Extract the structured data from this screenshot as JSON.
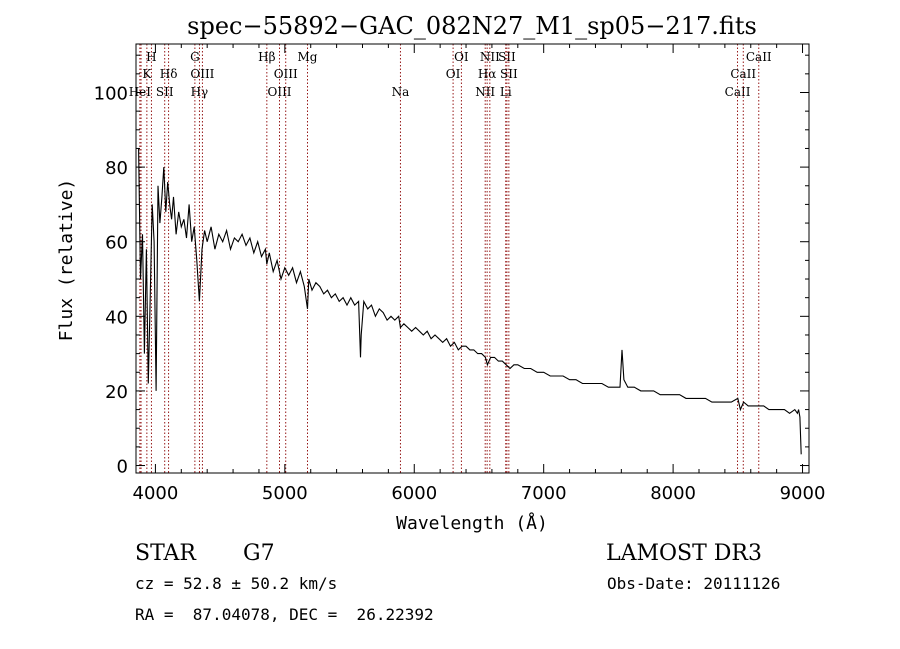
{
  "chart_data": {
    "type": "line",
    "title": "spec−55892−GAC_082N27_M1_sp05−217.fits",
    "xlabel": "Wavelength (Å)",
    "ylabel": "Flux (relative)",
    "xlim": [
      3850,
      9050
    ],
    "ylim": [
      -2,
      113
    ],
    "xticks": [
      4000,
      5000,
      6000,
      7000,
      8000,
      9000
    ],
    "yticks": [
      0,
      20,
      40,
      60,
      80,
      100
    ],
    "xtick_labels": [
      "4000",
      "5000",
      "6000",
      "7000",
      "8000",
      "9000"
    ],
    "ytick_labels": [
      "0",
      "20",
      "40",
      "60",
      "80",
      "100"
    ],
    "grid": false,
    "line_color": "#000000",
    "marker_color": "#8b0000",
    "series": [
      {
        "name": "flux",
        "x": [
          3870,
          3885,
          3900,
          3915,
          3930,
          3945,
          3960,
          3975,
          3990,
          4005,
          4020,
          4035,
          4050,
          4065,
          4080,
          4095,
          4110,
          4125,
          4140,
          4160,
          4180,
          4200,
          4220,
          4240,
          4260,
          4280,
          4300,
          4320,
          4340,
          4360,
          4380,
          4400,
          4430,
          4460,
          4490,
          4520,
          4550,
          4580,
          4610,
          4640,
          4670,
          4700,
          4730,
          4760,
          4790,
          4820,
          4850,
          4861,
          4880,
          4910,
          4940,
          4970,
          5000,
          5030,
          5060,
          5090,
          5120,
          5150,
          5175,
          5185,
          5210,
          5240,
          5270,
          5300,
          5330,
          5360,
          5390,
          5420,
          5450,
          5480,
          5510,
          5540,
          5570,
          5585,
          5590,
          5610,
          5640,
          5670,
          5700,
          5730,
          5760,
          5790,
          5820,
          5850,
          5880,
          5893,
          5920,
          5950,
          5980,
          6010,
          6040,
          6070,
          6100,
          6130,
          6160,
          6190,
          6220,
          6250,
          6280,
          6310,
          6340,
          6370,
          6400,
          6430,
          6460,
          6490,
          6520,
          6550,
          6565,
          6590,
          6620,
          6650,
          6680,
          6710,
          6740,
          6770,
          6800,
          6850,
          6900,
          6950,
          7000,
          7050,
          7100,
          7150,
          7200,
          7250,
          7300,
          7350,
          7400,
          7450,
          7500,
          7550,
          7590,
          7605,
          7620,
          7650,
          7700,
          7750,
          7800,
          7850,
          7900,
          7950,
          8000,
          8050,
          8100,
          8150,
          8200,
          8250,
          8300,
          8350,
          8400,
          8450,
          8500,
          8520,
          8545,
          8580,
          8620,
          8660,
          8700,
          8740,
          8780,
          8820,
          8860,
          8900,
          8940,
          8960,
          8970,
          8980,
          8990
        ],
        "y": [
          85,
          50,
          62,
          30,
          58,
          22,
          45,
          70,
          60,
          20,
          75,
          65,
          72,
          80,
          68,
          76,
          70,
          66,
          72,
          62,
          68,
          64,
          66,
          61,
          70,
          60,
          64,
          55,
          44,
          58,
          63,
          60,
          64,
          58,
          62,
          60,
          63,
          58,
          61,
          60,
          62,
          59,
          61,
          57,
          60,
          56,
          58,
          54,
          57,
          52,
          55,
          50,
          53,
          51,
          53,
          49,
          52,
          48,
          42,
          50,
          47,
          49,
          48,
          46,
          47,
          45,
          46,
          44,
          45,
          43,
          45,
          43,
          44,
          29,
          35,
          44,
          42,
          43,
          40,
          42,
          41,
          39,
          40,
          39,
          40,
          37,
          38,
          37,
          36,
          37,
          36,
          35,
          36,
          34,
          35,
          34,
          33,
          34,
          32,
          33,
          31,
          32,
          32,
          31,
          31,
          30,
          30,
          29,
          27,
          29,
          29,
          28,
          28,
          27,
          26,
          27,
          27,
          26,
          26,
          25,
          25,
          24,
          24,
          24,
          23,
          23,
          22,
          22,
          22,
          22,
          21,
          21,
          21,
          31,
          23,
          21,
          21,
          20,
          20,
          20,
          19,
          19,
          19,
          19,
          18,
          18,
          18,
          18,
          17,
          17,
          17,
          17,
          18,
          15,
          17,
          16,
          16,
          16,
          16,
          15,
          15,
          15,
          15,
          14,
          15,
          14,
          15,
          13,
          3
        ]
      }
    ],
    "line_markers": [
      {
        "wl": 3880,
        "label": "HeI",
        "row": 3
      },
      {
        "wl": 3889,
        "label": "",
        "row": 0
      },
      {
        "wl": 3934,
        "label": "K",
        "row": 2
      },
      {
        "wl": 3969,
        "label": "H",
        "row": 1
      },
      {
        "wl": 4072,
        "label": "SII",
        "row": 3
      },
      {
        "wl": 4102,
        "label": "Hδ",
        "row": 2
      },
      {
        "wl": 4305,
        "label": "G",
        "row": 1
      },
      {
        "wl": 4340,
        "label": "Hγ",
        "row": 3
      },
      {
        "wl": 4363,
        "label": "OIII",
        "row": 2
      },
      {
        "wl": 4861,
        "label": "Hβ",
        "row": 1
      },
      {
        "wl": 4959,
        "label": "OIII",
        "row": 3
      },
      {
        "wl": 5007,
        "label": "OIII",
        "row": 2
      },
      {
        "wl": 5175,
        "label": "Mg",
        "row": 1
      },
      {
        "wl": 5893,
        "label": "Na",
        "row": 3
      },
      {
        "wl": 6300,
        "label": "OI",
        "row": 2
      },
      {
        "wl": 6364,
        "label": "OI",
        "row": 1
      },
      {
        "wl": 6548,
        "label": "NII",
        "row": 3
      },
      {
        "wl": 6563,
        "label": "Hα",
        "row": 2
      },
      {
        "wl": 6584,
        "label": "NII",
        "row": 1
      },
      {
        "wl": 6707,
        "label": "Li",
        "row": 3
      },
      {
        "wl": 6716,
        "label": "SII",
        "row": 1
      },
      {
        "wl": 6731,
        "label": "SII",
        "row": 2
      },
      {
        "wl": 8498,
        "label": "CaII",
        "row": 3
      },
      {
        "wl": 8542,
        "label": "CaII",
        "row": 2
      },
      {
        "wl": 8662,
        "label": "CaII",
        "row": 1
      }
    ]
  },
  "info": {
    "object_class": "STAR",
    "subclass": "G7",
    "survey": "LAMOST DR3",
    "cz": "cz = 52.8 ± 50.2 km/s",
    "obs_date": "Obs-Date: 20111126",
    "coords": "RA =  87.04078, DEC =  26.22392"
  }
}
